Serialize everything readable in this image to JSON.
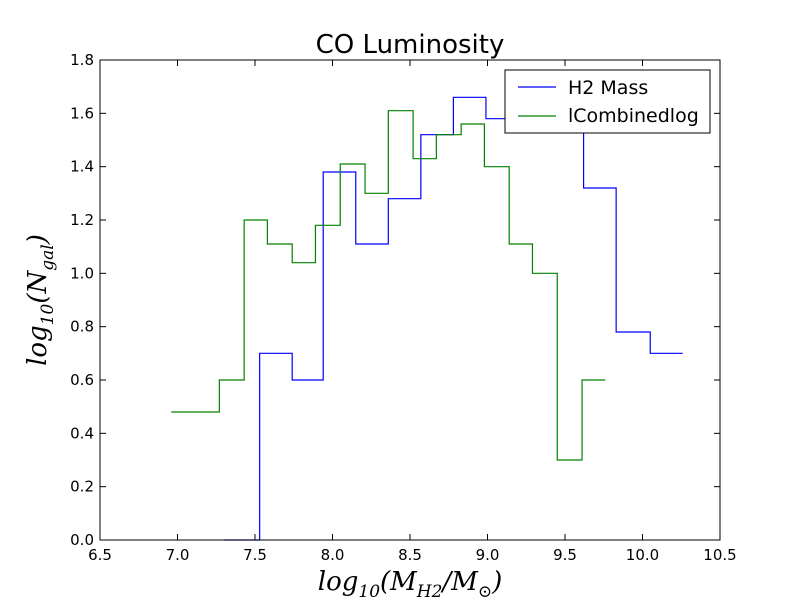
{
  "chart_data": {
    "type": "line",
    "step": "post",
    "title": "CO Luminosity",
    "xlabel": "log10(MH2/M⊙)",
    "ylabel": "log10(Ngal)",
    "xlim": [
      6.5,
      10.5
    ],
    "ylim": [
      0.0,
      1.8
    ],
    "xticks": [
      "6.5",
      "7.0",
      "7.5",
      "8.0",
      "8.5",
      "9.0",
      "9.5",
      "10.0",
      "10.5"
    ],
    "yticks": [
      "0.0",
      "0.2",
      "0.4",
      "0.6",
      "0.8",
      "1.0",
      "1.2",
      "1.4",
      "1.6",
      "1.8"
    ],
    "grid": false,
    "legend_position": "top-right",
    "series": [
      {
        "name": "H2 Mass",
        "color": "#0000ff",
        "x": [
          7.3,
          7.53,
          7.53,
          7.74,
          7.94,
          8.15,
          8.36,
          8.57,
          8.78,
          8.99,
          9.2,
          9.41,
          9.62,
          9.83,
          10.05,
          10.26
        ],
        "y": [
          0.0,
          0.0,
          0.7,
          0.6,
          1.38,
          1.11,
          1.28,
          1.52,
          1.66,
          1.58,
          1.58,
          1.58,
          1.32,
          0.78,
          0.7,
          0.7
        ]
      },
      {
        "name": "lCombinedlog",
        "color": "#008000",
        "x": [
          6.96,
          7.27,
          7.43,
          7.58,
          7.74,
          7.89,
          8.05,
          8.21,
          8.36,
          8.52,
          8.67,
          8.83,
          8.98,
          9.14,
          9.29,
          9.45,
          9.61,
          9.76
        ],
        "y": [
          0.48,
          0.6,
          1.2,
          1.11,
          1.04,
          1.18,
          1.41,
          1.3,
          1.61,
          1.43,
          1.52,
          1.56,
          1.4,
          1.11,
          1.0,
          0.3,
          0.6,
          0.6
        ]
      }
    ]
  }
}
